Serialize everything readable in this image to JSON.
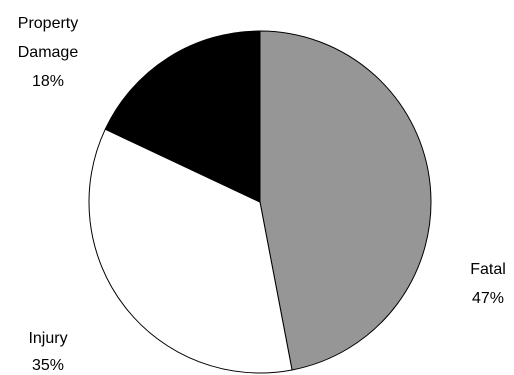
{
  "chart_data": {
    "type": "pie",
    "slices": [
      {
        "label": "Fatal",
        "value": 47,
        "percent_text": "47%",
        "color": "#969696"
      },
      {
        "label": "Injury",
        "value": 35,
        "percent_text": "35%",
        "color": "#ffffff"
      },
      {
        "label": "Property Damage",
        "label_lines": [
          "Property",
          "Damage"
        ],
        "value": 18,
        "percent_text": "18%",
        "color": "#000000"
      }
    ]
  }
}
